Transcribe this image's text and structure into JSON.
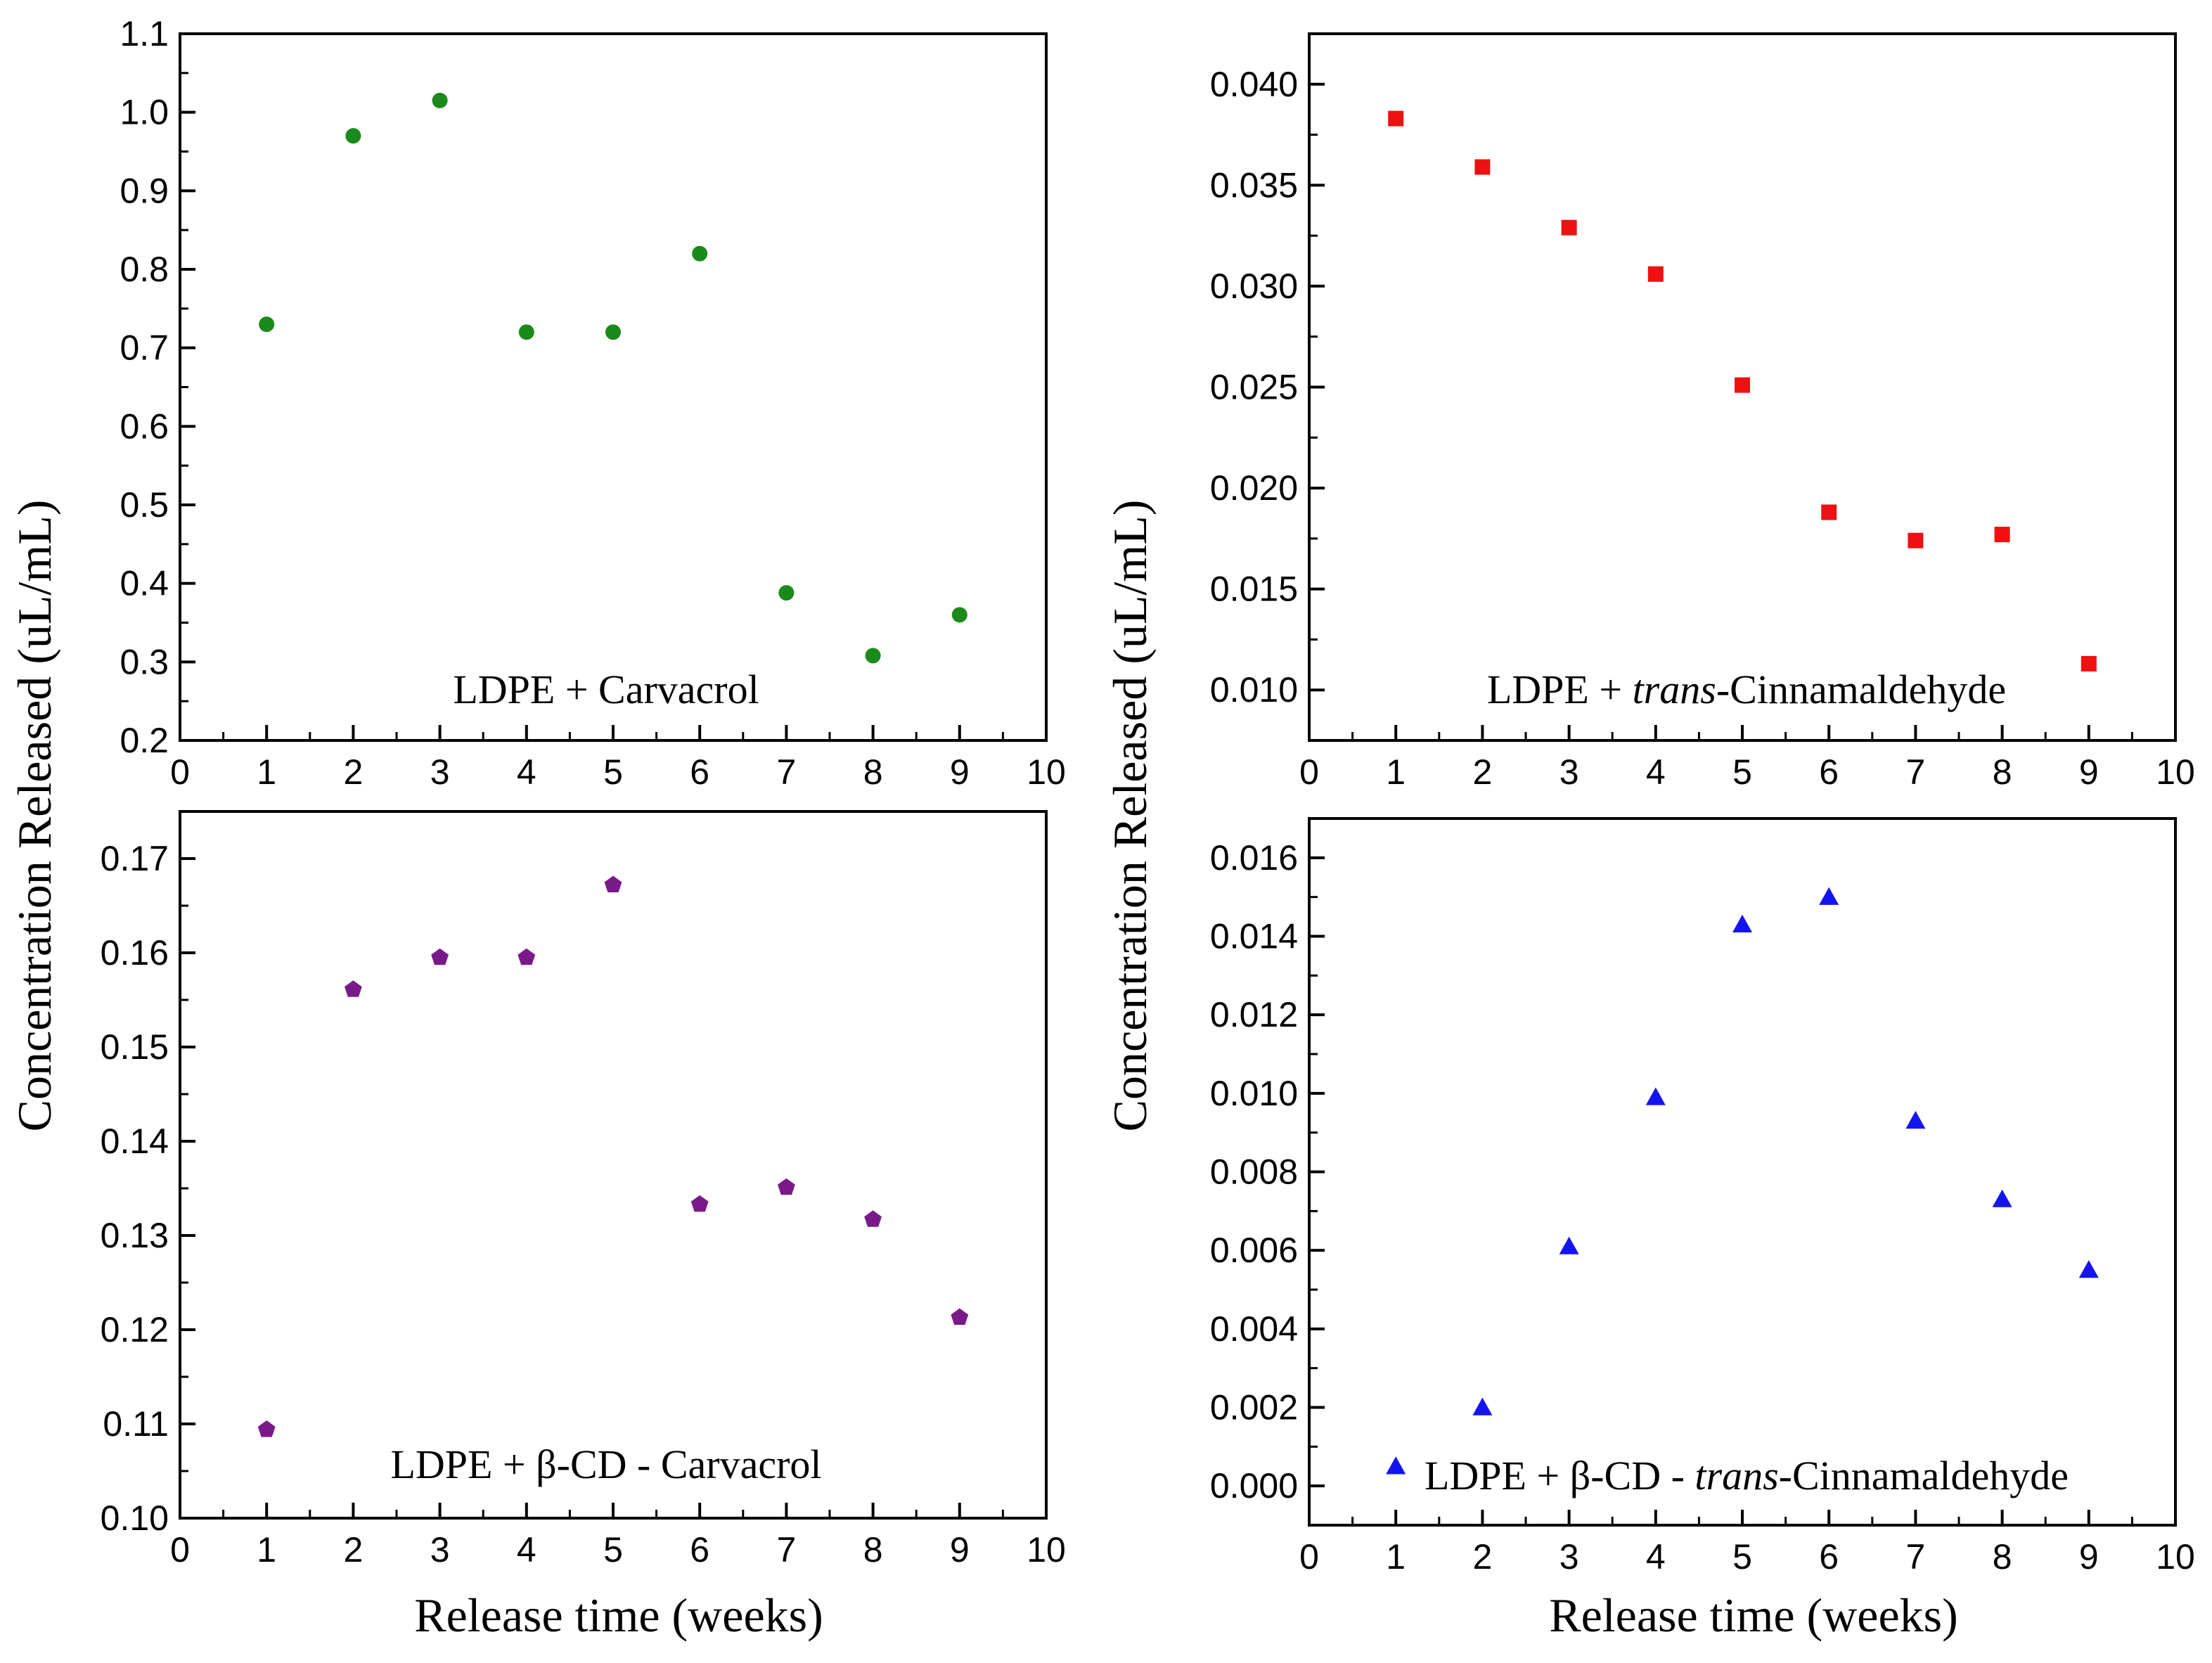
{
  "figure": {
    "ylabel": "Concentration Released (uL/mL)",
    "xlabel": "Release time (weeks)"
  },
  "chart_data": [
    {
      "type": "scatter",
      "id": "carvacrol",
      "title_parts": [
        {
          "text": "LDPE + Carvacrol",
          "italic": false
        }
      ],
      "xlabel": "Release time (weeks)",
      "ylabel": "Concentration Released (uL/mL)",
      "xlim": [
        0,
        10
      ],
      "ylim": [
        0.2,
        1.1
      ],
      "xticks": [
        "0",
        "1",
        "2",
        "3",
        "4",
        "5",
        "6",
        "7",
        "8",
        "9",
        "10"
      ],
      "yticks": [
        "0.2",
        "0.3",
        "0.4",
        "0.5",
        "0.6",
        "0.7",
        "0.8",
        "0.9",
        "1.0",
        "1.1"
      ],
      "marker": "circle",
      "color": "#1a8a1a",
      "series": [
        {
          "name": "LDPE + Carvacrol",
          "x": [
            1,
            2,
            3,
            4,
            5,
            6,
            7,
            8,
            9
          ],
          "y": [
            0.73,
            0.97,
            1.015,
            0.72,
            0.72,
            0.82,
            0.388,
            0.308,
            0.36
          ]
        }
      ]
    },
    {
      "type": "scatter",
      "id": "cinnamaldehyde",
      "title_parts": [
        {
          "text": "LDPE + ",
          "italic": false
        },
        {
          "text": "trans",
          "italic": true
        },
        {
          "text": "-Cinnamaldehyde",
          "italic": false
        }
      ],
      "xlabel": "Release time (weeks)",
      "ylabel": "Concentration Released (uL/mL)",
      "xlim": [
        0,
        10
      ],
      "ylim": [
        0.0075,
        0.0425
      ],
      "xticks": [
        "0",
        "1",
        "2",
        "3",
        "4",
        "5",
        "6",
        "7",
        "8",
        "9",
        "10"
      ],
      "yticks": [
        "0.010",
        "0.015",
        "0.020",
        "0.025",
        "0.030",
        "0.035",
        "0.040"
      ],
      "marker": "square",
      "color": "#ee1111",
      "series": [
        {
          "name": "LDPE + trans-Cinnamaldehyde",
          "x": [
            1,
            2,
            3,
            4,
            5,
            6,
            7,
            8,
            9
          ],
          "y": [
            0.0383,
            0.0359,
            0.0329,
            0.0306,
            0.0251,
            0.0188,
            0.0174,
            0.0177,
            0.0113
          ]
        }
      ]
    },
    {
      "type": "scatter",
      "id": "bcd-carvacrol",
      "title_parts": [
        {
          "text": "LDPE + β-CD - Carvacrol",
          "italic": false
        }
      ],
      "xlabel": "Release time (weeks)",
      "ylabel": "Concentration Released (uL/mL)",
      "xlim": [
        0,
        10
      ],
      "ylim": [
        0.1,
        0.175
      ],
      "xticks": [
        "0",
        "1",
        "2",
        "3",
        "4",
        "5",
        "6",
        "7",
        "8",
        "9",
        "10"
      ],
      "yticks": [
        "0.10",
        "0.11",
        "0.12",
        "0.13",
        "0.14",
        "0.15",
        "0.16",
        "0.17"
      ],
      "marker": "pentagon",
      "color": "#7a1a8a",
      "series": [
        {
          "name": "LDPE + β-CD - Carvacrol",
          "x": [
            1,
            2,
            3,
            4,
            5,
            6,
            7,
            8,
            9
          ],
          "y": [
            0.1094,
            0.1561,
            0.1595,
            0.1595,
            0.1672,
            0.1333,
            0.1351,
            0.1317,
            0.1213
          ]
        }
      ]
    },
    {
      "type": "scatter",
      "id": "bcd-cinnamaldehyde",
      "title_parts": [
        {
          "text": "LDPE + β-CD - ",
          "italic": false
        },
        {
          "text": "trans",
          "italic": true
        },
        {
          "text": "-Cinnamaldehyde",
          "italic": false
        }
      ],
      "xlabel": "Release time (weeks)",
      "ylabel": "Concentration Released (uL/mL)",
      "xlim": [
        0,
        10
      ],
      "ylim": [
        -0.001,
        0.017
      ],
      "xticks": [
        "0",
        "1",
        "2",
        "3",
        "4",
        "5",
        "6",
        "7",
        "8",
        "9",
        "10"
      ],
      "yticks": [
        "0.000",
        "0.002",
        "0.004",
        "0.006",
        "0.008",
        "0.010",
        "0.012",
        "0.014",
        "0.016"
      ],
      "marker": "triangle",
      "color": "#1414ee",
      "series": [
        {
          "name": "LDPE + β-CD - trans-Cinnamaldehyde",
          "x": [
            1,
            2,
            3,
            4,
            5,
            6,
            7,
            8,
            9
          ],
          "y": [
            0.0005,
            0.002,
            0.0061,
            0.0099,
            0.0143,
            0.015,
            0.0093,
            0.0073,
            0.0055
          ]
        }
      ]
    }
  ]
}
